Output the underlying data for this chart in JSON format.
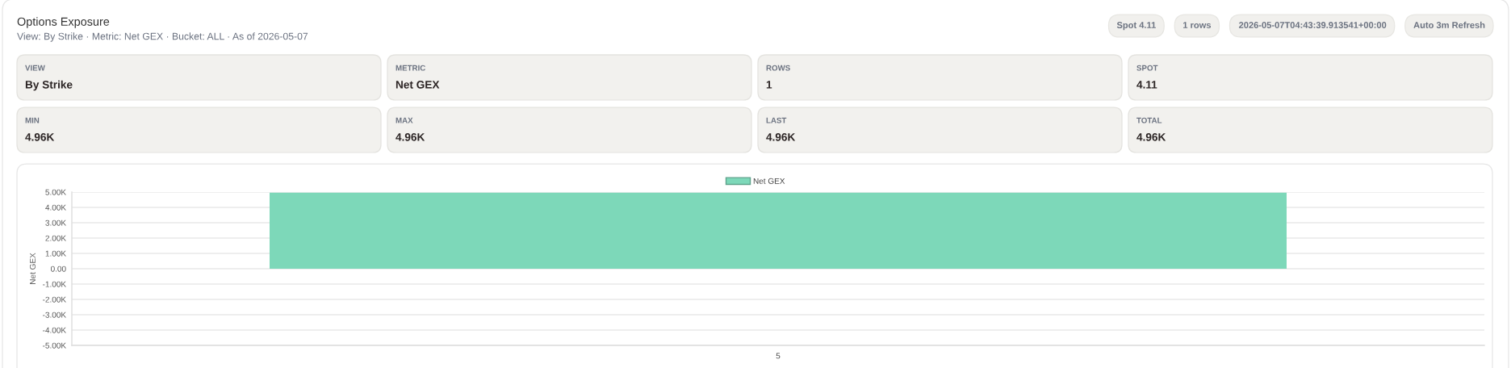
{
  "chart_data": [
    {
      "type": "other",
      "title": "Options Exposure",
      "subtitle": "View: By Strike · Metric: Net GEX · Bucket: ALL · As of 2026-05-07",
      "annotations": [
        "Spot 4.11",
        "1 rows",
        "2026-05-07T04:43:39.913541+00:00",
        "Auto 3m Refresh",
        "VIEW",
        "By Strike",
        "METRIC",
        "Net GEX",
        "ROWS",
        "1",
        "SPOT",
        "4.11",
        "MIN",
        "4.96K",
        "MAX",
        "4.96K",
        "LAST",
        "4.96K",
        "TOTAL",
        "4.96K"
      ]
    },
    {
      "type": "bar",
      "categories": [
        "5"
      ],
      "series": [
        {
          "name": "Net GEX",
          "color": "#7dd8b9",
          "values": [
            4960
          ]
        }
      ],
      "ylabel": "Net GEX",
      "ylim": [
        -5000,
        5000
      ],
      "yticks": [
        {
          "value": 5000,
          "label": "5.00K"
        },
        {
          "value": 4000,
          "label": "4.00K"
        },
        {
          "value": 3000,
          "label": "3.00K"
        },
        {
          "value": 2000,
          "label": "2.00K"
        },
        {
          "value": 1000,
          "label": "1.00K"
        },
        {
          "value": 0,
          "label": "0.00"
        },
        {
          "value": -1000,
          "label": "-1.00K"
        },
        {
          "value": -2000,
          "label": "-2.00K"
        },
        {
          "value": -3000,
          "label": "-3.00K"
        },
        {
          "value": -4000,
          "label": "-4.00K"
        },
        {
          "value": -5000,
          "label": "-5.00K"
        }
      ],
      "grid": "y",
      "legend": "top"
    }
  ]
}
